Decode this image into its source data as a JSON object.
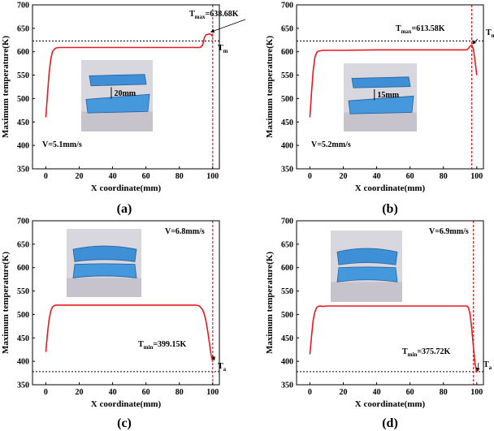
{
  "chart_data": [
    {
      "type": "line",
      "panel_label": "(a)",
      "xlabel": "X coordinate(mm)",
      "ylabel": "Maximum temperature(K)",
      "xlim": [
        -8,
        104
      ],
      "ylim": [
        350,
        700
      ],
      "xticks": [
        0,
        20,
        40,
        60,
        80,
        100
      ],
      "yticks": [
        350,
        400,
        450,
        500,
        550,
        600,
        650,
        700
      ],
      "series": [
        {
          "color": "#e8191f",
          "x": [
            0,
            1,
            2,
            3,
            4,
            5,
            6,
            8,
            10,
            20,
            40,
            60,
            80,
            92,
            93,
            94,
            95,
            96,
            97,
            98,
            99,
            100
          ],
          "y": [
            460,
            510,
            555,
            585,
            600,
            605,
            608,
            609,
            609,
            609,
            609,
            609,
            609,
            609,
            610,
            615,
            630,
            636,
            637,
            638,
            637,
            632
          ]
        }
      ],
      "hline": {
        "y": 623,
        "label": "T",
        "sub": "m"
      },
      "vline": {
        "x": 100
      },
      "annotation": {
        "text": "T",
        "sub": "max",
        "value": "=638.68K",
        "point": [
          98,
          638.68
        ]
      },
      "speed": "V=5.1mm/s",
      "photo": {
        "gap_label": "20mm",
        "style": "gap"
      }
    },
    {
      "type": "line",
      "panel_label": "(b)",
      "xlabel": "X coordinate(mm)",
      "ylabel": "Maximum temperature(K)",
      "xlim": [
        -8,
        104
      ],
      "ylim": [
        350,
        700
      ],
      "xticks": [
        0,
        20,
        40,
        60,
        80,
        100
      ],
      "yticks": [
        350,
        400,
        450,
        500,
        550,
        600,
        650,
        700
      ],
      "series": [
        {
          "color": "#e8191f",
          "x": [
            0,
            1,
            2,
            3,
            4,
            5,
            6,
            8,
            10,
            20,
            40,
            60,
            80,
            92,
            94,
            95,
            96,
            97,
            98,
            99,
            100
          ],
          "y": [
            460,
            515,
            560,
            588,
            598,
            601,
            602,
            603,
            603,
            603,
            604,
            604,
            604,
            604,
            604,
            607,
            612,
            614,
            605,
            580,
            550
          ]
        }
      ],
      "hline": {
        "y": 623,
        "label": "T",
        "sub": "m"
      },
      "vline": {
        "x": 97
      },
      "annotation": {
        "text": "T",
        "sub": "max",
        "value": "=613.58K",
        "point": [
          96.5,
          613.58
        ]
      },
      "speed": "V=5.2mm/s",
      "photo": {
        "gap_label": "15mm",
        "style": "gap"
      }
    },
    {
      "type": "line",
      "panel_label": "(c)",
      "xlabel": "X coordinate(mm)",
      "ylabel": "Maximum temperature(K)",
      "xlim": [
        -8,
        104
      ],
      "ylim": [
        350,
        700
      ],
      "xticks": [
        0,
        20,
        40,
        60,
        80,
        100
      ],
      "yticks": [
        350,
        400,
        450,
        500,
        550,
        600,
        650,
        700
      ],
      "series": [
        {
          "color": "#e8191f",
          "x": [
            0,
            1,
            2,
            3,
            4,
            5,
            6,
            8,
            10,
            20,
            40,
            60,
            80,
            90,
            92,
            94,
            95,
            96,
            97,
            98,
            99,
            100
          ],
          "y": [
            420,
            460,
            490,
            508,
            516,
            519,
            520,
            520,
            520,
            520,
            520,
            520,
            520,
            520,
            518,
            510,
            500,
            485,
            465,
            440,
            415,
            399
          ]
        }
      ],
      "hline": {
        "y": 378,
        "label": "T",
        "sub": "a"
      },
      "vline": {
        "x": 100
      },
      "annotation": {
        "text": "T",
        "sub": "min",
        "value": "=399.15K",
        "point": [
          100,
          399.15
        ]
      },
      "speed": "V=6.8mm/s",
      "photo": {
        "gap_label": "",
        "style": "joined"
      }
    },
    {
      "type": "line",
      "panel_label": "(d)",
      "xlabel": "X coordinate(mm)",
      "ylabel": "Maximum temperature(K)",
      "xlim": [
        -8,
        104
      ],
      "ylim": [
        350,
        700
      ],
      "xticks": [
        0,
        20,
        40,
        60,
        80,
        100
      ],
      "yticks": [
        350,
        400,
        450,
        500,
        550,
        600,
        650,
        700
      ],
      "series": [
        {
          "color": "#e8191f",
          "x": [
            0,
            1,
            2,
            3,
            4,
            5,
            6,
            8,
            10,
            20,
            40,
            60,
            80,
            90,
            92,
            94,
            95,
            96,
            97,
            98,
            99,
            100
          ],
          "y": [
            415,
            455,
            488,
            506,
            514,
            517,
            518,
            517,
            518,
            518,
            518,
            518,
            518,
            518,
            518,
            518,
            515,
            500,
            470,
            430,
            395,
            376
          ]
        }
      ],
      "hline": {
        "y": 378,
        "label": "T",
        "sub": "a"
      },
      "vline": {
        "x": 98
      },
      "annotation": {
        "text": "T",
        "sub": "min",
        "value": "=375.72K",
        "point": [
          99.5,
          375.72
        ]
      },
      "speed": "V=6.9mm/s",
      "photo": {
        "gap_label": "",
        "style": "joined"
      }
    }
  ]
}
